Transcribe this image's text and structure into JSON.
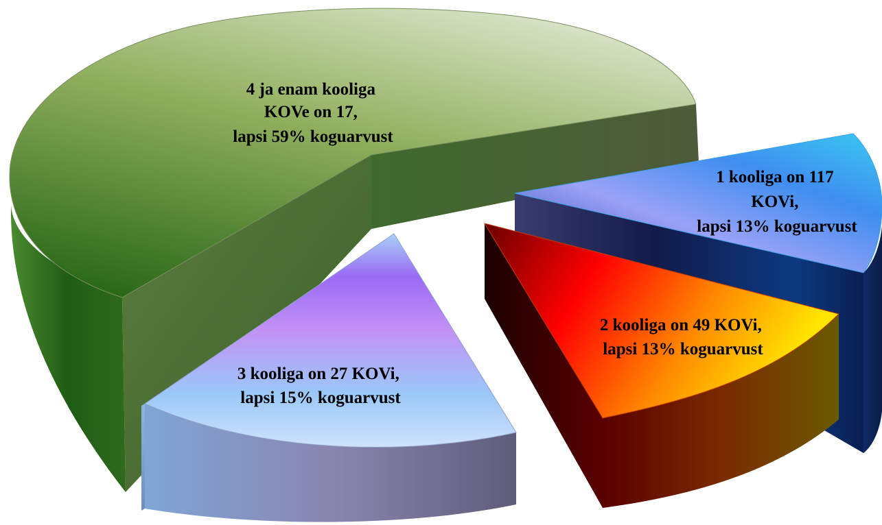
{
  "chart_data": {
    "type": "pie",
    "title": "",
    "three_d": true,
    "exploded": true,
    "series": [
      {
        "values": [
          59,
          13,
          13,
          15
        ],
        "slices": [
          {
            "category": "4 ja enam kooliga",
            "kov_count": 17,
            "value": 59,
            "label_lines": [
              "4 ja enam kooliga",
              "KOVe on 17,",
              "lapsi 59%  koguarvust"
            ],
            "colors": [
              "#d2dfbd",
              "#6f9240",
              "#1d5a12"
            ]
          },
          {
            "category": "1 kooliga",
            "kov_count": 117,
            "value": 13,
            "label_lines": [
              "1 kooliga on  117",
              "KOVi,",
              "lapsi 13% koguarvust"
            ],
            "colors": [
              "#6ad8ee",
              "#2f55d8",
              "#16296a"
            ]
          },
          {
            "category": "2 kooliga",
            "kov_count": 49,
            "value": 13,
            "label_lines": [
              "2 kooliga  on 49 KOVi,",
              "lapsi 13% koguarvust"
            ],
            "colors": [
              "#ffe600",
              "#ff7a00",
              "#e10000"
            ]
          },
          {
            "category": "3 kooliga",
            "kov_count": 27,
            "value": 15,
            "label_lines": [
              "3 kooliga on 27 KOVi,",
              "lapsi 15% koguarvust"
            ],
            "colors": [
              "#a6cdf6",
              "#b187f8",
              "#8f5ff2"
            ]
          }
        ]
      }
    ]
  }
}
